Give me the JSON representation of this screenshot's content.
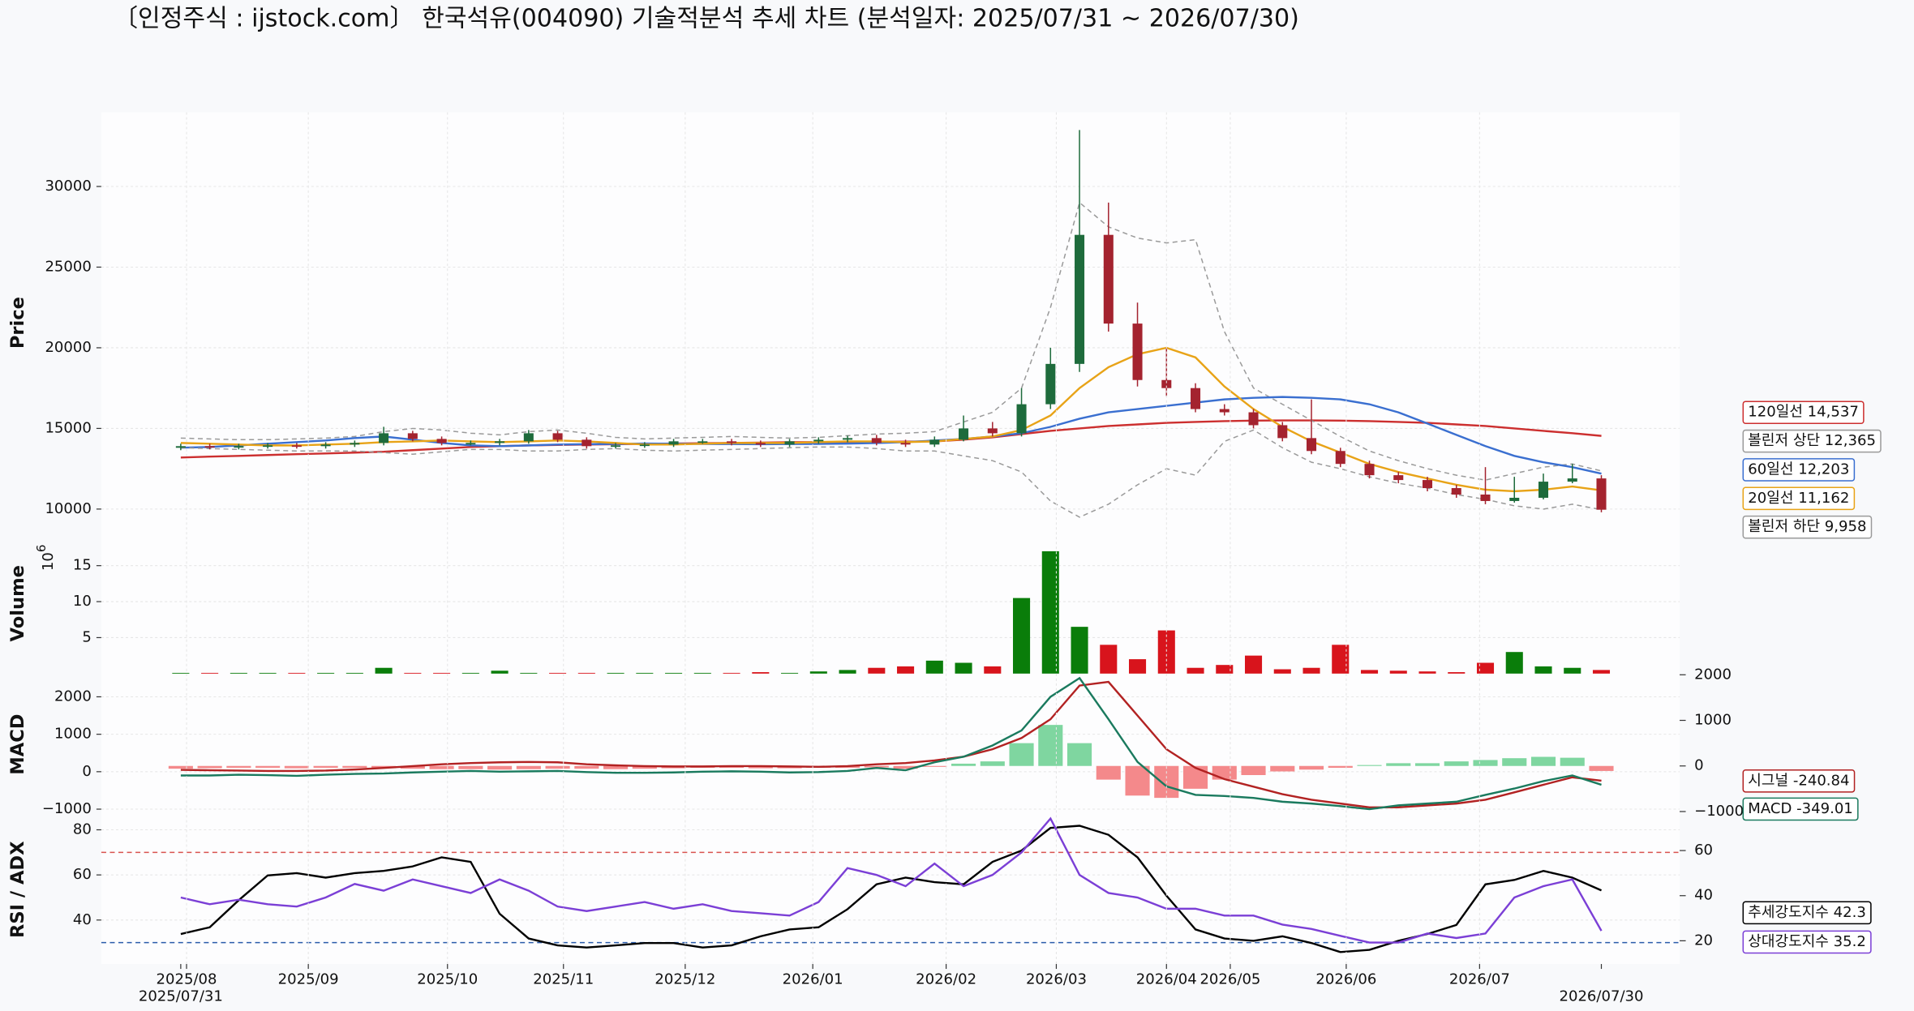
{
  "chart_data": [
    {
      "type": "candlestick",
      "title": "〔인정주식 : ijstock.com〕 한국석유(004090) 기술적분석 추세 차트 (분석일자: 2025/07/31 ~ 2026/07/30)",
      "ylabel": "Price",
      "x": [
        0,
        5,
        10,
        15,
        20,
        25,
        30,
        35,
        40,
        45,
        50,
        55,
        60,
        65,
        70,
        75,
        80,
        85,
        90,
        95,
        100,
        105,
        110,
        115,
        120,
        125,
        130,
        135,
        140,
        145,
        150,
        155,
        160,
        165,
        170,
        175,
        180,
        185,
        190,
        195,
        200,
        205,
        210,
        215,
        220,
        225,
        230,
        235,
        240,
        245
      ],
      "xlim": [
        -13.7,
        258.5
      ],
      "open": [
        13800,
        13900,
        13850,
        13900,
        13950,
        13900,
        14000,
        14100,
        14700,
        14350,
        14100,
        14100,
        14200,
        14700,
        14300,
        13900,
        13950,
        14000,
        14200,
        14200,
        14100,
        14000,
        14200,
        14300,
        14400,
        14100,
        14000,
        14300,
        15000,
        14700,
        16500,
        19000,
        27000,
        21500,
        18000,
        17500,
        16200,
        16000,
        15200,
        14400,
        13600,
        12800,
        12100,
        11800,
        11300,
        10900,
        10500,
        10700,
        11700,
        11900
      ],
      "high": [
        14050,
        14050,
        14050,
        14100,
        14100,
        14150,
        14250,
        15100,
        14850,
        14500,
        14250,
        14350,
        14900,
        14850,
        14450,
        14100,
        14150,
        14350,
        14350,
        14350,
        14250,
        14350,
        14450,
        14550,
        14600,
        14300,
        14500,
        15800,
        15400,
        17500,
        20000,
        33500,
        29000,
        22800,
        20000,
        17800,
        16500,
        16200,
        15400,
        16800,
        13800,
        13000,
        12300,
        12000,
        11500,
        12600,
        12000,
        12200,
        12800,
        12100
      ],
      "low": [
        13650,
        13700,
        13700,
        13750,
        13750,
        13750,
        13850,
        13950,
        14200,
        13950,
        13950,
        13950,
        14050,
        14150,
        13750,
        13750,
        13800,
        13850,
        14050,
        13950,
        13850,
        13850,
        14050,
        14150,
        13950,
        13850,
        13850,
        14200,
        14500,
        14500,
        16200,
        18500,
        21000,
        17600,
        17000,
        16000,
        15800,
        15000,
        14200,
        13400,
        12600,
        11900,
        11600,
        11100,
        10700,
        10300,
        10400,
        10600,
        11600,
        9800
      ],
      "close": [
        13900,
        13850,
        13900,
        13950,
        13900,
        14000,
        14100,
        14700,
        14350,
        14100,
        14100,
        14200,
        14700,
        14300,
        13900,
        13950,
        14000,
        14200,
        14200,
        14100,
        14000,
        14200,
        14300,
        14400,
        14100,
        14000,
        14300,
        15000,
        14700,
        16500,
        19000,
        27000,
        21500,
        18000,
        17500,
        16200,
        16000,
        15200,
        14400,
        13600,
        12800,
        12100,
        11800,
        11300,
        10900,
        10500,
        10700,
        11700,
        11900,
        9960
      ],
      "up_color": "#1e6b3c",
      "down_color": "#a4232f",
      "ylim": [
        8500,
        34600
      ],
      "yticks": [
        10000,
        15000,
        20000,
        25000,
        30000
      ],
      "grid": true,
      "series": [
        {
          "name": "120일선 14,537",
          "color": "#cc2f2f",
          "values": [
            13200,
            13250,
            13300,
            13350,
            13400,
            13450,
            13500,
            13550,
            13650,
            13750,
            13850,
            13900,
            13950,
            13980,
            14000,
            14020,
            14040,
            14060,
            14080,
            14100,
            14120,
            14140,
            14150,
            14160,
            14170,
            14180,
            14200,
            14300,
            14450,
            14650,
            14850,
            15000,
            15150,
            15250,
            15350,
            15400,
            15450,
            15480,
            15500,
            15500,
            15480,
            15450,
            15400,
            15350,
            15250,
            15150,
            15000,
            14850,
            14700,
            14537
          ]
        },
        {
          "name": "볼린저 상단 12,365",
          "color": "#9a9a9a",
          "dashed": true,
          "values": [
            14400,
            14350,
            14300,
            14300,
            14350,
            14400,
            14500,
            14800,
            15000,
            14900,
            14700,
            14600,
            14800,
            14900,
            14700,
            14450,
            14350,
            14400,
            14450,
            14500,
            14450,
            14400,
            14450,
            14550,
            14650,
            14700,
            14800,
            15400,
            16000,
            17500,
            22500,
            29000,
            27500,
            26800,
            26500,
            26700,
            21000,
            17500,
            16500,
            15500,
            14500,
            13600,
            13000,
            12500,
            12100,
            11800,
            12200,
            12600,
            12800,
            12365
          ]
        },
        {
          "name": "60일선 12,203",
          "color": "#3a6fd0",
          "values": [
            13800,
            13850,
            13950,
            14050,
            14150,
            14250,
            14400,
            14500,
            14300,
            14100,
            13950,
            13900,
            13950,
            14000,
            14020,
            14040,
            14060,
            14050,
            14040,
            14030,
            14020,
            14030,
            14040,
            14060,
            14100,
            14150,
            14250,
            14350,
            14500,
            14700,
            15100,
            15600,
            16000,
            16200,
            16400,
            16600,
            16800,
            16900,
            16950,
            16900,
            16800,
            16500,
            16000,
            15300,
            14600,
            13900,
            13300,
            12900,
            12600,
            12203
          ]
        },
        {
          "name": "20일선 11,162",
          "color": "#e8a317",
          "values": [
            14100,
            14050,
            14000,
            13950,
            13950,
            14000,
            14050,
            14150,
            14200,
            14250,
            14200,
            14150,
            14200,
            14250,
            14200,
            14100,
            14000,
            14000,
            14050,
            14100,
            14100,
            14100,
            14150,
            14200,
            14200,
            14150,
            14200,
            14350,
            14500,
            14900,
            15800,
            17500,
            18800,
            19600,
            20000,
            19400,
            17600,
            16200,
            15100,
            14200,
            13500,
            12800,
            12300,
            11900,
            11500,
            11200,
            11100,
            11200,
            11400,
            11162
          ]
        },
        {
          "name": "볼린저 하단 9,958",
          "color": "#9a9a9a",
          "dashed": true,
          "values": [
            13800,
            13750,
            13700,
            13650,
            13600,
            13600,
            13600,
            13500,
            13400,
            13550,
            13700,
            13700,
            13600,
            13600,
            13700,
            13750,
            13650,
            13600,
            13650,
            13700,
            13750,
            13800,
            13850,
            13850,
            13750,
            13600,
            13600,
            13300,
            13000,
            12300,
            10500,
            9500,
            10300,
            11500,
            12500,
            12100,
            14200,
            14900,
            13800,
            12900,
            12500,
            12000,
            11600,
            11300,
            10900,
            10600,
            10200,
            10000,
            10300,
            9958
          ]
        }
      ]
    },
    {
      "type": "bar",
      "ylabel": "Volume",
      "offset_label": {
        "base": "10",
        "exponent": "6"
      },
      "values": [
        0.1,
        0.1,
        0.1,
        0.1,
        0.1,
        0.1,
        0.1,
        0.8,
        0.1,
        0.1,
        0.1,
        0.4,
        0.1,
        0.1,
        0.1,
        0.1,
        0.1,
        0.1,
        0.1,
        0.1,
        0.2,
        0.1,
        0.3,
        0.5,
        0.8,
        1.0,
        1.8,
        1.5,
        1.0,
        10.5,
        17,
        6.5,
        4,
        2,
        6,
        0.8,
        1.2,
        2.5,
        0.6,
        0.8,
        4,
        0.5,
        0.4,
        0.3,
        0.2,
        1.5,
        3,
        1,
        0.8,
        0.5
      ],
      "up_color": "#0a7d0a",
      "down_color": "#d8141c",
      "ylim": [
        0,
        19.5
      ],
      "yticks": [
        5,
        10,
        15
      ],
      "grid": true
    },
    {
      "type": "line",
      "ylabel": "MACD",
      "ylim": [
        -1160,
        2620
      ],
      "yticks": [
        {
          "value": -1000,
          "label": "−1000"
        },
        0,
        1000,
        2000
      ],
      "y2lim": [
        -1079,
        2026
      ],
      "y2ticks": [
        {
          "value": -1000,
          "label": "−1000"
        },
        0,
        1000,
        2000
      ],
      "grid": true,
      "series": [
        {
          "axis": "y2",
          "style": "bar",
          "pos_color": "#7fd6a0",
          "neg_color": "#f4898b",
          "values": [
            -60,
            -50,
            -40,
            -40,
            -50,
            -40,
            -40,
            -50,
            -60,
            -70,
            -70,
            -80,
            -70,
            -60,
            -60,
            -70,
            -60,
            -50,
            -40,
            -40,
            -50,
            -50,
            -40,
            -40,
            -30,
            -60,
            -20,
            50,
            100,
            500,
            900,
            500,
            -300,
            -650,
            -700,
            -500,
            -300,
            -200,
            -120,
            -80,
            -40,
            20,
            60,
            60,
            100,
            130,
            170,
            200,
            180,
            -110
          ]
        },
        {
          "name": "시그널 -240.84",
          "color": "#b22222",
          "values": [
            50,
            40,
            30,
            20,
            20,
            30,
            60,
            100,
            150,
            200,
            230,
            250,
            260,
            250,
            200,
            170,
            150,
            140,
            140,
            150,
            150,
            140,
            130,
            150,
            200,
            230,
            300,
            400,
            600,
            900,
            1400,
            2300,
            2400,
            1500,
            600,
            100,
            -200,
            -400,
            -600,
            -750,
            -850,
            -950,
            -950,
            -900,
            -850,
            -750,
            -550,
            -350,
            -150,
            -240.84
          ]
        },
        {
          "name": "MACD -349.01",
          "color": "#1a7a5e",
          "values": [
            -100,
            -100,
            -80,
            -90,
            -110,
            -80,
            -60,
            -50,
            -20,
            0,
            20,
            0,
            10,
            20,
            -10,
            -30,
            -30,
            -20,
            0,
            10,
            0,
            -20,
            -10,
            20,
            100,
            40,
            250,
            400,
            700,
            1100,
            2000,
            2500,
            1400,
            260,
            -390,
            -620,
            -650,
            -700,
            -800,
            -850,
            -920,
            -1000,
            -900,
            -850,
            -800,
            -620,
            -450,
            -250,
            -100,
            -349.01
          ]
        }
      ]
    },
    {
      "type": "line",
      "ylabel": "RSI / ADX",
      "ylim": [
        20.5,
        86.5
      ],
      "yticks": [
        40,
        60,
        80
      ],
      "y2lim": [
        9.7,
        75.7
      ],
      "y2ticks": [
        20,
        40,
        60
      ],
      "grid": true,
      "hlines": [
        {
          "value": 70,
          "color": "#d9534f"
        },
        {
          "value": 30,
          "color": "#2a5caa"
        }
      ],
      "series": [
        {
          "name": "추세강도지수 42.3",
          "color": "#000000",
          "axis": "y2",
          "values": [
            23,
            26,
            38,
            49,
            50,
            48,
            50,
            51,
            53,
            57,
            55,
            32,
            21,
            18,
            17,
            18,
            19,
            19,
            17,
            18,
            22,
            25,
            26,
            34,
            45,
            48,
            46,
            45,
            55,
            60,
            70,
            71,
            67,
            57,
            40,
            25,
            21,
            20,
            22,
            19,
            15,
            16,
            20,
            23,
            27,
            45,
            47,
            51,
            48,
            42.3
          ]
        },
        {
          "name": "상대강도지수 35.2",
          "color": "#7b3fd6",
          "values": [
            50,
            47,
            49,
            47,
            46,
            50,
            56,
            53,
            58,
            55,
            52,
            58,
            53,
            46,
            44,
            46,
            48,
            45,
            47,
            44,
            43,
            42,
            48,
            63,
            60,
            55,
            65,
            55,
            60,
            70,
            85,
            60,
            52,
            50,
            45,
            45,
            42,
            42,
            38,
            36,
            33,
            30,
            30,
            34,
            32,
            34,
            50,
            55,
            58,
            35.2
          ]
        }
      ],
      "xticks": [
        {
          "value": 1,
          "label": "2025/08"
        },
        {
          "value": 22,
          "label": "2025/09"
        },
        {
          "value": 46,
          "label": "2025/10"
        },
        {
          "value": 66,
          "label": "2025/11"
        },
        {
          "value": 87,
          "label": "2025/12"
        },
        {
          "value": 109,
          "label": "2026/01"
        },
        {
          "value": 132,
          "label": "2026/02"
        },
        {
          "value": 151,
          "label": "2026/03"
        },
        {
          "value": 170,
          "label": "2026/04"
        },
        {
          "value": 181,
          "label": "2026/05"
        },
        {
          "value": 201,
          "label": "2026/06"
        },
        {
          "value": 224,
          "label": "2026/07"
        }
      ],
      "date_range_ticks": [
        {
          "value": 0,
          "label": "2025/07/31"
        },
        {
          "value": 245,
          "label": "2026/07/30"
        }
      ]
    }
  ]
}
